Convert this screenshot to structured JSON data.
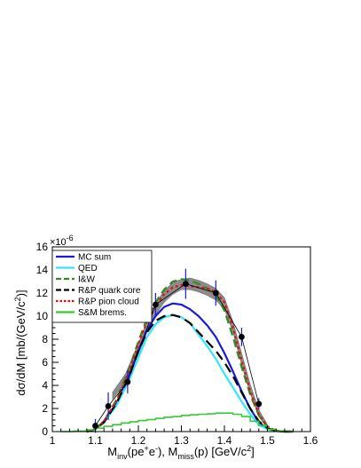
{
  "chart_data": {
    "type": "line",
    "xlabel": {
      "main_1": "M",
      "sub_1": "inv",
      "mid": "(pe",
      "sup_plus": "+",
      "e_char": "e",
      "sup_minus": "-",
      "mid2": "), M",
      "sub_2": "miss",
      "tail": "(p)  [GeV/c",
      "sup_2": "2",
      "end": "]"
    },
    "ylabel": {
      "main": "dσ/dM [mb/(GeV/c",
      "sup": "2",
      "end": ")]"
    },
    "y_exponent": "×10",
    "y_exponent_power": "-6",
    "xlim": [
      1.0,
      1.6
    ],
    "ylim": [
      0,
      16
    ],
    "x_ticks": [
      1,
      1.1,
      1.2,
      1.3,
      1.4,
      1.5,
      1.6
    ],
    "x_tick_labels": [
      "1",
      "1.1",
      "1.2",
      "1.3",
      "1.4",
      "1.5",
      "1.6"
    ],
    "y_ticks": [
      0,
      2,
      4,
      6,
      8,
      10,
      12,
      14,
      16
    ],
    "y_tick_labels": [
      "0",
      "2",
      "4",
      "6",
      "8",
      "10",
      "12",
      "14",
      "16"
    ],
    "legend": [
      {
        "label": "MC sum",
        "color": "#1a1adb",
        "style": "solid"
      },
      {
        "label": "QED",
        "color": "#33e6ff",
        "style": "solid"
      },
      {
        "label": "I&W",
        "color": "#2e8b1f",
        "style": "dashed"
      },
      {
        "label": "R&P quark core",
        "color": "#000000",
        "style": "dashed"
      },
      {
        "label": "R&P pion cloud",
        "color": "#e01010",
        "style": "dotted"
      },
      {
        "label": "S&M brems.",
        "color": "#33cc33",
        "style": "solid"
      }
    ],
    "series": [
      {
        "name": "MC sum",
        "color": "#1a1adb",
        "dash": "none",
        "width": 2.2,
        "x": [
          1.08,
          1.1,
          1.12,
          1.15,
          1.18,
          1.2,
          1.22,
          1.24,
          1.26,
          1.28,
          1.3,
          1.32,
          1.34,
          1.36,
          1.38,
          1.4,
          1.42,
          1.44,
          1.46,
          1.48,
          1.5,
          1.52,
          1.54,
          1.56
        ],
        "y": [
          0.0,
          0.2,
          0.9,
          2.5,
          5.0,
          7.0,
          8.8,
          10.0,
          10.8,
          11.1,
          11.0,
          10.6,
          10.0,
          9.2,
          8.2,
          6.8,
          5.2,
          3.5,
          2.0,
          0.8,
          0.25,
          0.05,
          0.0,
          0.0
        ]
      },
      {
        "name": "QED",
        "color": "#33e6ff",
        "dash": "none",
        "width": 2.2,
        "x": [
          1.08,
          1.1,
          1.12,
          1.15,
          1.18,
          1.2,
          1.22,
          1.24,
          1.26,
          1.28,
          1.3,
          1.32,
          1.34,
          1.36,
          1.38,
          1.4,
          1.42,
          1.44,
          1.46,
          1.48,
          1.5,
          1.52,
          1.54,
          1.56
        ],
        "y": [
          0.0,
          0.2,
          0.8,
          2.3,
          4.6,
          6.4,
          8.2,
          9.3,
          9.9,
          10.1,
          9.9,
          9.4,
          8.4,
          7.4,
          6.3,
          5.0,
          3.8,
          2.6,
          1.5,
          0.6,
          0.2,
          0.05,
          0.0,
          0.0
        ]
      },
      {
        "name": "I&W",
        "color": "#2e8b1f",
        "dash": "9,5",
        "width": 2.2,
        "x": [
          1.08,
          1.1,
          1.12,
          1.15,
          1.18,
          1.2,
          1.22,
          1.24,
          1.26,
          1.28,
          1.3,
          1.32,
          1.34,
          1.36,
          1.38,
          1.4,
          1.42,
          1.44,
          1.46,
          1.48,
          1.5,
          1.52,
          1.54,
          1.56
        ],
        "y": [
          0.0,
          0.2,
          0.9,
          2.8,
          5.6,
          7.8,
          9.8,
          11.2,
          12.3,
          13.0,
          13.2,
          13.1,
          12.8,
          12.4,
          11.8,
          10.5,
          8.2,
          5.6,
          3.2,
          1.4,
          0.4,
          0.08,
          0.0,
          0.0
        ]
      },
      {
        "name": "R&P quark core",
        "color": "#000000",
        "dash": "11,6",
        "width": 2.2,
        "x": [
          1.08,
          1.1,
          1.12,
          1.15,
          1.18,
          1.2,
          1.22,
          1.24,
          1.26,
          1.28,
          1.3,
          1.32,
          1.34,
          1.36,
          1.38,
          1.4,
          1.42,
          1.44,
          1.46,
          1.48,
          1.5,
          1.52,
          1.54,
          1.56
        ],
        "y": [
          0.0,
          0.2,
          0.8,
          2.5,
          4.9,
          7.0,
          8.6,
          9.6,
          10.0,
          10.1,
          9.9,
          9.4,
          8.6,
          7.8,
          7.0,
          6.0,
          4.8,
          3.4,
          2.0,
          0.9,
          0.3,
          0.06,
          0.0,
          0.0
        ]
      },
      {
        "name": "R&P pion cloud",
        "color": "#e01010",
        "dash": "3,3",
        "width": 2.2,
        "x": [
          1.08,
          1.1,
          1.12,
          1.15,
          1.18,
          1.2,
          1.22,
          1.24,
          1.26,
          1.28,
          1.3,
          1.32,
          1.34,
          1.36,
          1.38,
          1.4,
          1.42,
          1.44,
          1.46,
          1.48,
          1.5,
          1.52,
          1.54,
          1.56
        ],
        "y": [
          0.0,
          0.2,
          0.9,
          2.7,
          5.4,
          7.6,
          9.5,
          10.9,
          11.9,
          12.5,
          12.7,
          12.6,
          12.5,
          12.4,
          12.1,
          11.2,
          9.0,
          6.2,
          3.5,
          1.5,
          0.45,
          0.08,
          0.0,
          0.0
        ]
      },
      {
        "name": "S&M brems.",
        "color": "#33cc33",
        "dash": "none",
        "width": 1.6,
        "step": true,
        "x": [
          1.02,
          1.05,
          1.08,
          1.1,
          1.12,
          1.14,
          1.16,
          1.18,
          1.2,
          1.22,
          1.24,
          1.26,
          1.28,
          1.3,
          1.32,
          1.34,
          1.36,
          1.38,
          1.4,
          1.42,
          1.44,
          1.46,
          1.48,
          1.5,
          1.52,
          1.54
        ],
        "y": [
          0.0,
          0.05,
          0.15,
          0.3,
          0.45,
          0.6,
          0.75,
          0.85,
          0.95,
          1.05,
          1.15,
          1.25,
          1.3,
          1.4,
          1.45,
          1.5,
          1.55,
          1.6,
          1.6,
          1.5,
          1.3,
          0.9,
          0.5,
          0.2,
          0.05,
          0.0
        ]
      }
    ],
    "gray_band": {
      "x": [
        1.14,
        1.17,
        1.2,
        1.22,
        1.24,
        1.26,
        1.28,
        1.3,
        1.32,
        1.34,
        1.36,
        1.38,
        1.4,
        1.42,
        1.44,
        1.46,
        1.48,
        1.5
      ],
      "y_low": [
        2.8,
        4.3,
        6.7,
        8.6,
        10.1,
        11.2,
        11.9,
        12.3,
        12.3,
        12.1,
        11.8,
        11.4,
        10.6,
        8.6,
        5.8,
        3.3,
        1.3,
        0.3
      ],
      "y_high": [
        3.4,
        5.0,
        7.6,
        9.6,
        11.1,
        12.2,
        12.9,
        13.2,
        13.3,
        13.1,
        12.8,
        12.4,
        11.6,
        9.5,
        6.8,
        4.1,
        1.9,
        0.6
      ]
    },
    "data_points": [
      {
        "x": 1.1,
        "y": 0.5,
        "err": 0.6
      },
      {
        "x": 1.13,
        "y": 2.2,
        "err": 1.2
      },
      {
        "x": 1.175,
        "y": 4.3,
        "err": 1.0
      },
      {
        "x": 1.24,
        "y": 11.0,
        "err": 1.0
      },
      {
        "x": 1.31,
        "y": 12.8,
        "err": 1.3
      },
      {
        "x": 1.38,
        "y": 12.0,
        "err": 1.1
      },
      {
        "x": 1.44,
        "y": 8.2,
        "err": 0.8
      },
      {
        "x": 1.48,
        "y": 2.4,
        "err": 0.5
      }
    ]
  }
}
